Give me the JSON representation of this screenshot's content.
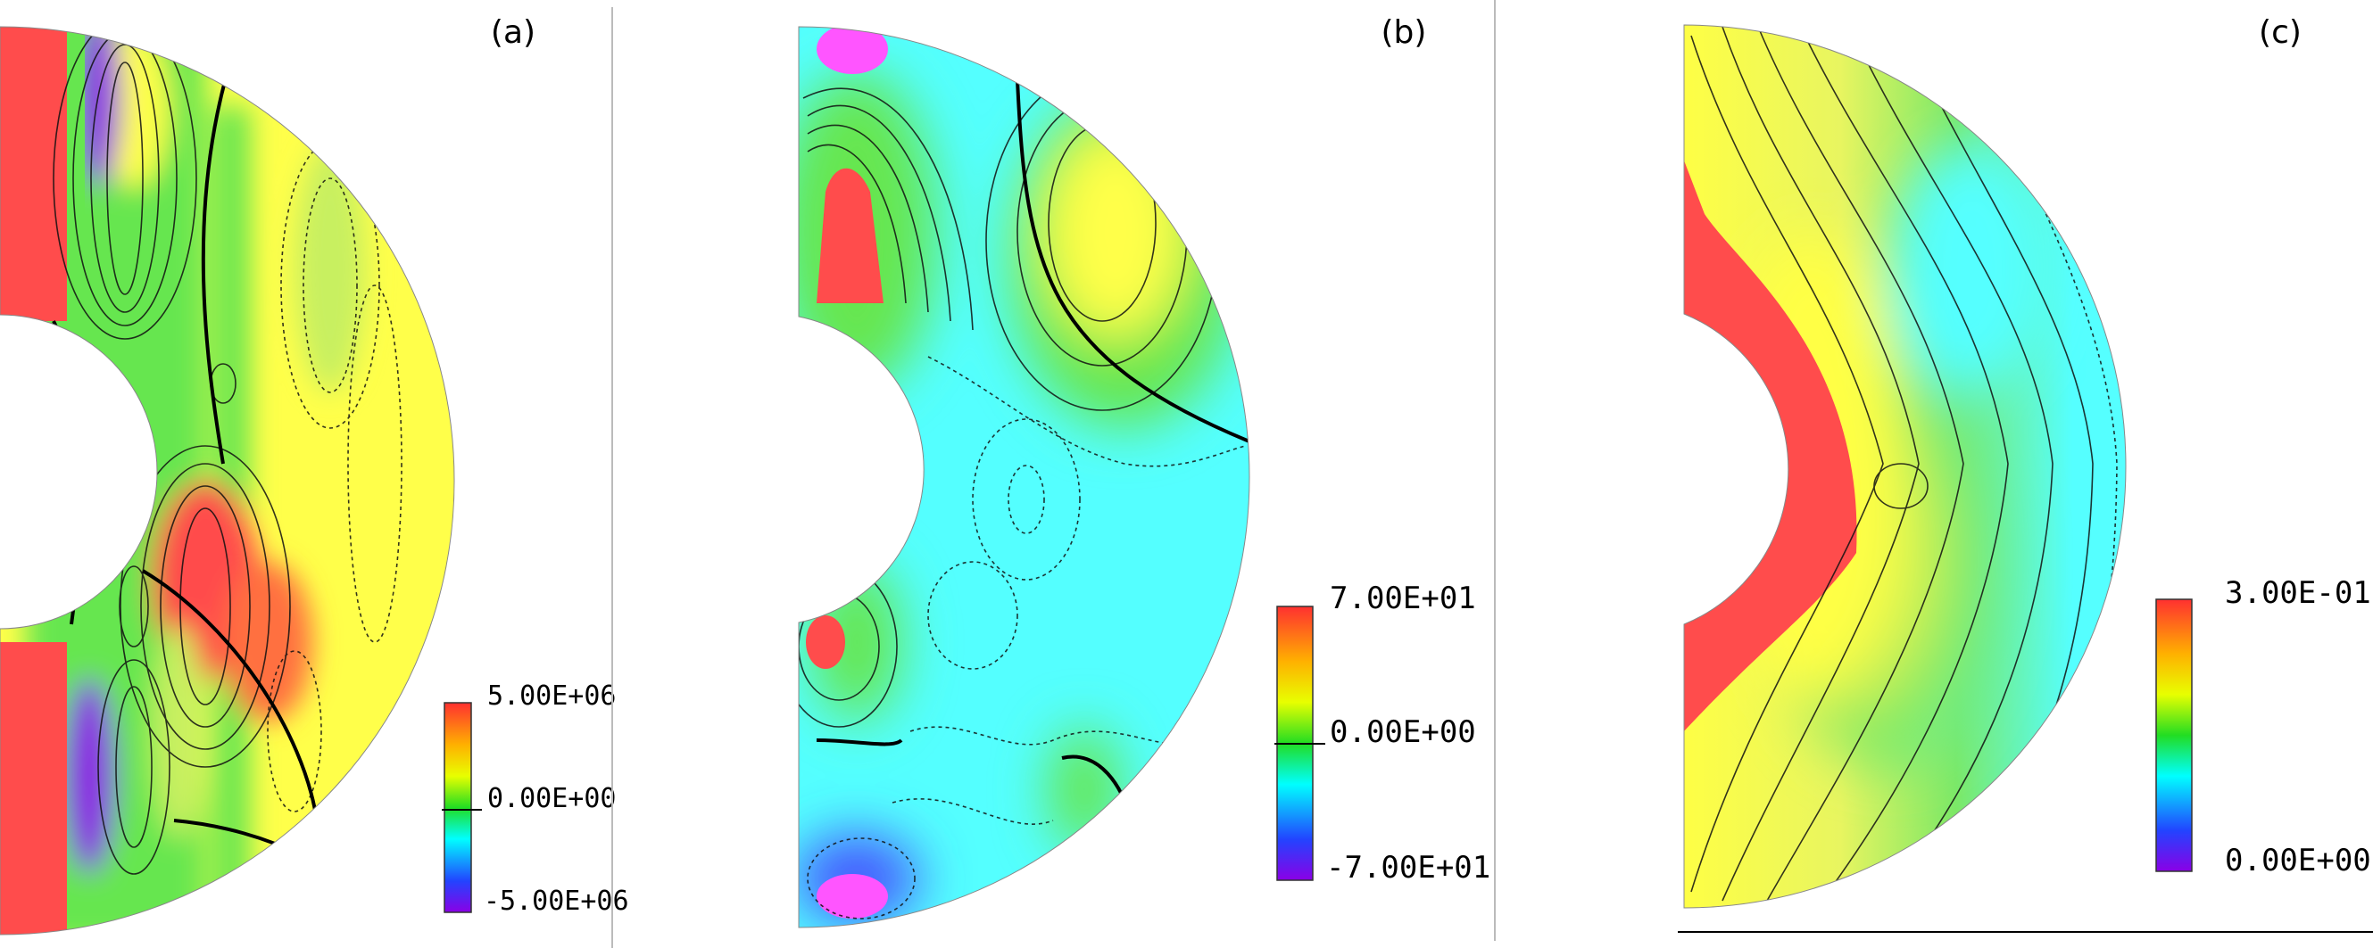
{
  "panels": [
    {
      "tag": "(a)",
      "colorbar": {
        "max": "5.00E+06",
        "mid": "0.00E+00",
        "min": "-5.00E+06"
      }
    },
    {
      "tag": "(b)",
      "colorbar": {
        "max": "7.00E+01",
        "mid": "0.00E+00",
        "min": "-7.00E+01"
      }
    },
    {
      "tag": "(c)",
      "colorbar": {
        "max": "3.00E-01",
        "min": "0.00E+00"
      }
    }
  ],
  "colors": {
    "red": "#ff4c4c",
    "yellow": "#ffff4a",
    "green": "#66e64f",
    "cyan": "#54ffff",
    "blue": "#4455ff",
    "violet": "#8a2be2",
    "magenta": "#ff55ff"
  }
}
